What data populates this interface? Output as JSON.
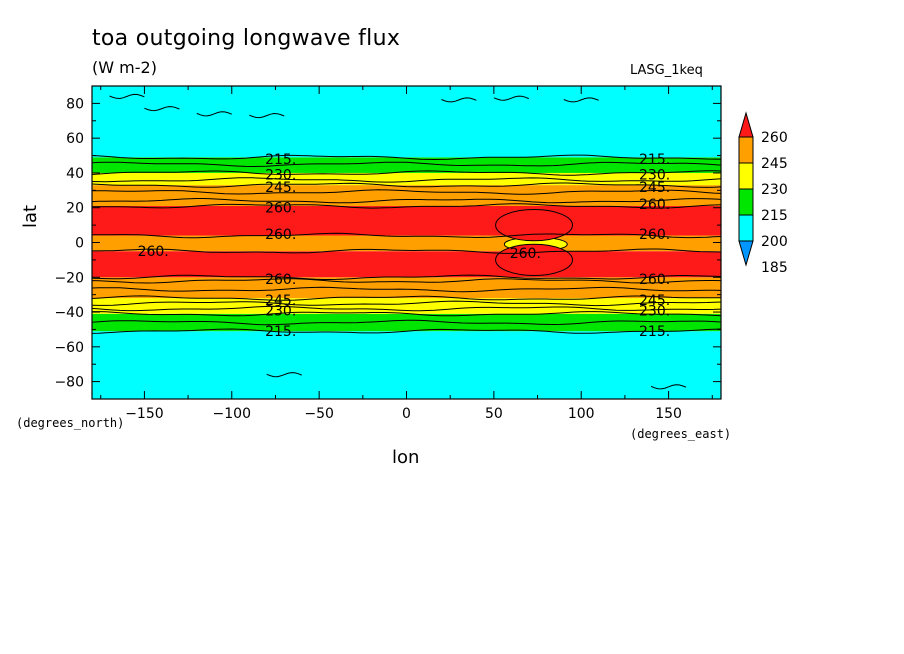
{
  "chart_data": {
    "type": "heatmap",
    "title": "toa outgoing longwave flux",
    "units": "(W m-2)",
    "model_label": "LASG_1keq",
    "xlabel": "lon",
    "ylabel": "lat",
    "x_units_label": "(degrees_east)",
    "y_units_label": "(degrees_north)",
    "xlim": [
      -180,
      180
    ],
    "ylim": [
      -90,
      90
    ],
    "x_ticks": [
      -150,
      -100,
      -50,
      0,
      50,
      100,
      150
    ],
    "y_ticks": [
      80,
      60,
      40,
      20,
      0,
      -20,
      -40,
      -60,
      -80
    ],
    "x_tick_labels": [
      "−150",
      "−100",
      "−50",
      "0",
      "50",
      "100",
      "150"
    ],
    "y_tick_labels": [
      "80",
      "60",
      "40",
      "20",
      "0",
      "−20",
      "−40",
      "−60",
      "−80"
    ],
    "colorbar": {
      "levels": [
        185,
        200,
        215,
        230,
        245,
        260
      ],
      "level_labels": [
        "185",
        "200",
        "215",
        "230",
        "245",
        "260"
      ],
      "colors": [
        "#0096ff",
        "#00ffff",
        "#00e600",
        "#ffff00",
        "#ff9f00",
        "#ff1a1a"
      ]
    },
    "bands": [
      {
        "lat_min": -90,
        "lat_max": -51,
        "level": "200-215",
        "color": "#00ffff"
      },
      {
        "lat_min": -51,
        "lat_max": -41,
        "level": "215-230",
        "color": "#00e600"
      },
      {
        "lat_min": -41,
        "lat_max": -32,
        "level": "230-245",
        "color": "#ffff00"
      },
      {
        "lat_min": -32,
        "lat_max": -20,
        "level": "245-260",
        "color": "#ff9f00"
      },
      {
        "lat_min": -20,
        "lat_max": -5,
        "level": ">260",
        "color": "#ff1a1a"
      },
      {
        "lat_min": -5,
        "lat_max": 4,
        "level": "245-260",
        "color": "#ff9f00"
      },
      {
        "lat_min": 4,
        "lat_max": 21,
        "level": ">260",
        "color": "#ff1a1a"
      },
      {
        "lat_min": 21,
        "lat_max": 33,
        "level": "245-260",
        "color": "#ff9f00"
      },
      {
        "lat_min": 33,
        "lat_max": 40,
        "level": "230-245",
        "color": "#ffff00"
      },
      {
        "lat_min": 40,
        "lat_max": 49,
        "level": "215-230",
        "color": "#00e600"
      },
      {
        "lat_min": 49,
        "lat_max": 90,
        "level": "200-215",
        "color": "#00ffff"
      }
    ],
    "contours": [
      -51,
      -46,
      -41,
      -38,
      -35,
      -32,
      -27,
      -22,
      -20,
      -5,
      4,
      21,
      24,
      29,
      33,
      36,
      40,
      45,
      49
    ],
    "blobs": [
      {
        "lon": 74,
        "lat": -1,
        "dlon": 18,
        "dlat": 4,
        "color": "#ffff00"
      },
      {
        "lon": 73,
        "lat": 10,
        "dlon": 22,
        "dlat": 9,
        "color": "#ff1a1a"
      },
      {
        "lon": 73,
        "lat": -10,
        "dlon": 22,
        "dlat": 9,
        "color": "#ff1a1a"
      }
    ],
    "contour_labels": [
      {
        "text": "215.",
        "lon": -72,
        "lat": 48
      },
      {
        "text": "230.",
        "lon": -72,
        "lat": 39
      },
      {
        "text": "245.",
        "lon": -72,
        "lat": 32
      },
      {
        "text": "260.",
        "lon": -72,
        "lat": 20
      },
      {
        "text": "260.",
        "lon": -72,
        "lat": 5
      },
      {
        "text": "260.",
        "lon": -145,
        "lat": -5
      },
      {
        "text": "260.",
        "lon": -72,
        "lat": -21
      },
      {
        "text": "245.",
        "lon": -72,
        "lat": -33
      },
      {
        "text": "230.",
        "lon": -72,
        "lat": -39
      },
      {
        "text": "215.",
        "lon": -72,
        "lat": -51
      },
      {
        "text": "215.",
        "lon": 142,
        "lat": 48
      },
      {
        "text": "230.",
        "lon": 142,
        "lat": 39
      },
      {
        "text": "245.",
        "lon": 142,
        "lat": 32
      },
      {
        "text": "260.",
        "lon": 142,
        "lat": 22
      },
      {
        "text": "260.",
        "lon": 142,
        "lat": 5
      },
      {
        "text": "260.",
        "lon": 68,
        "lat": -6
      },
      {
        "text": "260.",
        "lon": 142,
        "lat": -21
      },
      {
        "text": "245.",
        "lon": 142,
        "lat": -33
      },
      {
        "text": "230.",
        "lon": 142,
        "lat": -39
      },
      {
        "text": "215.",
        "lon": 142,
        "lat": -51
      }
    ]
  }
}
